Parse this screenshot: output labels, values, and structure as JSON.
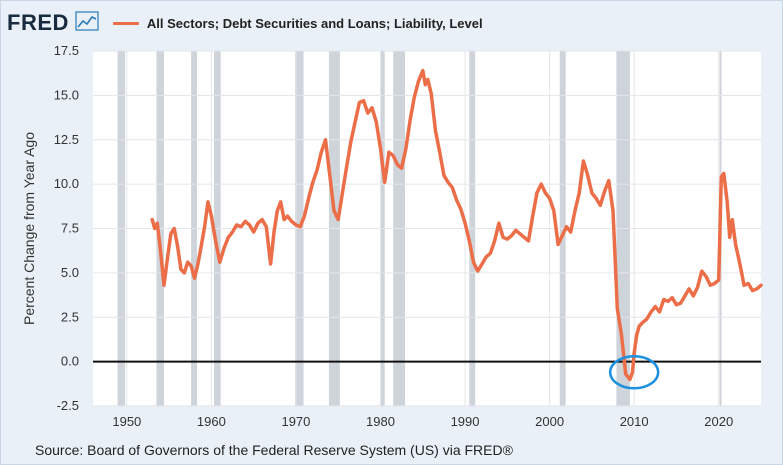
{
  "header": {
    "logo_text": "FRED",
    "legend_label": "All Sectors; Debt Securities and Loans; Liability, Level"
  },
  "footer": {
    "source": "Source: Board of Governors of the Federal Reserve System (US) via FRED®"
  },
  "colors": {
    "line": "#eb6e48",
    "recession": "#cfd4db",
    "annotation_circle": "#1e90e0",
    "background": "#eaf0f7",
    "plot_background": "#ffffff"
  },
  "chart_data": {
    "type": "line",
    "title": "",
    "xlabel": "",
    "ylabel": "Percent Change from Year Ago",
    "xlim": [
      1946,
      2025
    ],
    "ylim": [
      -2.5,
      17.5
    ],
    "x_ticks": [
      1950,
      1960,
      1970,
      1980,
      1990,
      2000,
      2010,
      2020
    ],
    "y_ticks": [
      -2.5,
      0.0,
      2.5,
      5.0,
      7.5,
      10.0,
      12.5,
      15.0,
      17.5
    ],
    "y_tick_labels": [
      "-2.5",
      "0.0",
      "2.5",
      "5.0",
      "7.5",
      "10.0",
      "12.5",
      "15.0",
      "17.5"
    ],
    "zero_line": 0,
    "recessions": [
      [
        1948.9,
        1949.8
      ],
      [
        1953.5,
        1954.4
      ],
      [
        1957.6,
        1958.3
      ],
      [
        1960.3,
        1961.1
      ],
      [
        1969.9,
        1970.9
      ],
      [
        1973.9,
        1975.2
      ],
      [
        1980.0,
        1980.5
      ],
      [
        1981.5,
        1982.9
      ],
      [
        1990.5,
        1991.2
      ],
      [
        2001.2,
        2001.9
      ],
      [
        2007.9,
        2009.5
      ],
      [
        2020.1,
        2020.3
      ]
    ],
    "annotations": [
      {
        "type": "circle",
        "x": 2010.0,
        "y": -0.6,
        "label": ""
      }
    ],
    "series": [
      {
        "name": "All Sectors; Debt Securities and Loans; Liability, Level",
        "x": [
          1953.0,
          1953.3,
          1953.6,
          1954.0,
          1954.4,
          1954.8,
          1955.2,
          1955.6,
          1956.0,
          1956.4,
          1956.8,
          1957.2,
          1957.6,
          1958.0,
          1958.4,
          1958.8,
          1959.2,
          1959.6,
          1960.0,
          1960.5,
          1961.0,
          1961.5,
          1962.0,
          1962.5,
          1963.0,
          1963.5,
          1964.0,
          1964.5,
          1965.0,
          1965.5,
          1966.0,
          1966.5,
          1967.0,
          1967.4,
          1967.8,
          1968.2,
          1968.6,
          1969.0,
          1969.5,
          1970.0,
          1970.5,
          1971.0,
          1971.5,
          1972.0,
          1972.5,
          1973.0,
          1973.5,
          1974.0,
          1974.5,
          1975.0,
          1975.5,
          1976.0,
          1976.5,
          1977.0,
          1977.5,
          1978.0,
          1978.5,
          1979.0,
          1979.5,
          1980.0,
          1980.5,
          1981.0,
          1981.5,
          1982.0,
          1982.5,
          1983.0,
          1983.5,
          1984.0,
          1984.5,
          1985.0,
          1985.3,
          1985.6,
          1986.0,
          1986.5,
          1987.0,
          1987.5,
          1988.0,
          1988.5,
          1989.0,
          1989.5,
          1990.0,
          1990.5,
          1991.0,
          1991.5,
          1992.0,
          1992.5,
          1993.0,
          1993.5,
          1994.0,
          1994.5,
          1995.0,
          1995.5,
          1996.0,
          1996.5,
          1997.0,
          1997.5,
          1998.0,
          1998.5,
          1999.0,
          1999.5,
          2000.0,
          2000.5,
          2001.0,
          2001.5,
          2002.0,
          2002.5,
          2003.0,
          2003.5,
          2004.0,
          2004.5,
          2005.0,
          2005.5,
          2006.0,
          2006.5,
          2007.0,
          2007.5,
          2008.0,
          2008.5,
          2009.0,
          2009.5,
          2009.8,
          2010.0,
          2010.3,
          2010.6,
          2011.0,
          2011.5,
          2012.0,
          2012.5,
          2013.0,
          2013.5,
          2014.0,
          2014.5,
          2015.0,
          2015.5,
          2016.0,
          2016.5,
          2017.0,
          2017.5,
          2018.0,
          2018.5,
          2019.0,
          2019.5,
          2020.0,
          2020.3,
          2020.6,
          2021.0,
          2021.3,
          2021.6,
          2022.0,
          2022.5,
          2023.0,
          2023.5,
          2024.0,
          2024.5,
          2025.0
        ],
        "values": [
          8.0,
          7.5,
          7.8,
          6.2,
          4.3,
          5.8,
          7.2,
          7.5,
          6.5,
          5.2,
          5.0,
          5.6,
          5.4,
          4.7,
          5.5,
          6.5,
          7.6,
          9.0,
          8.2,
          6.8,
          5.6,
          6.4,
          7.0,
          7.3,
          7.7,
          7.6,
          7.9,
          7.7,
          7.3,
          7.8,
          8.0,
          7.6,
          5.5,
          7.3,
          8.5,
          9.0,
          8.0,
          8.2,
          7.9,
          7.7,
          7.6,
          8.2,
          9.2,
          10.1,
          10.8,
          11.8,
          12.5,
          10.5,
          8.5,
          8.0,
          9.5,
          11.0,
          12.4,
          13.5,
          14.6,
          14.7,
          14.0,
          14.3,
          13.5,
          12.0,
          10.1,
          11.8,
          11.6,
          11.1,
          10.9,
          12.0,
          13.6,
          14.9,
          15.8,
          16.4,
          15.6,
          15.9,
          15.1,
          13.0,
          11.8,
          10.5,
          10.1,
          9.8,
          9.1,
          8.6,
          7.8,
          6.8,
          5.6,
          5.1,
          5.5,
          5.9,
          6.1,
          6.8,
          7.8,
          7.0,
          6.9,
          7.1,
          7.4,
          7.2,
          7.0,
          6.8,
          8.2,
          9.5,
          10.0,
          9.5,
          9.2,
          8.5,
          6.6,
          7.1,
          7.6,
          7.3,
          8.5,
          9.5,
          11.3,
          10.5,
          9.5,
          9.2,
          8.8,
          9.6,
          10.2,
          8.5,
          3.0,
          1.5,
          -0.7,
          -1.0,
          -0.6,
          0.5,
          1.5,
          2.0,
          2.2,
          2.4,
          2.8,
          3.1,
          2.8,
          3.5,
          3.4,
          3.6,
          3.2,
          3.3,
          3.7,
          4.1,
          3.7,
          4.2,
          5.1,
          4.8,
          4.3,
          4.4,
          4.6,
          10.4,
          10.6,
          9.0,
          7.0,
          8.0,
          6.6,
          5.5,
          4.3,
          4.4,
          4.0,
          4.1,
          4.3
        ]
      }
    ]
  }
}
